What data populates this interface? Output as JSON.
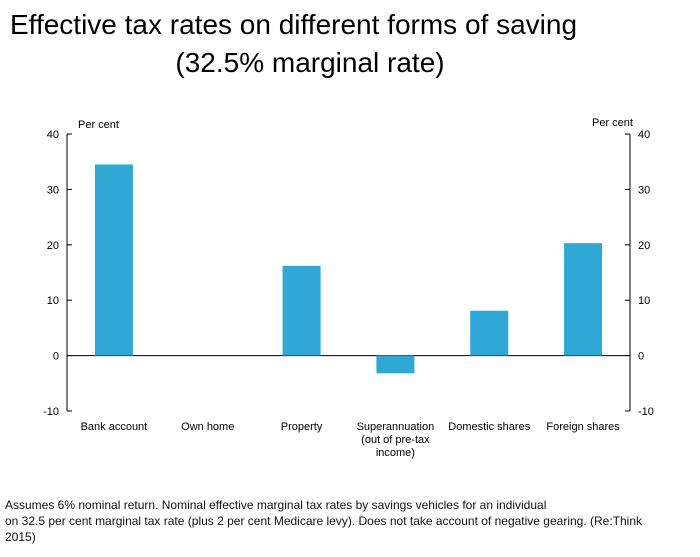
{
  "title": {
    "line1": "Effective tax rates on different forms of saving",
    "line2": "(32.5% marginal rate)"
  },
  "chart_data": {
    "type": "bar",
    "categories": [
      "Bank account",
      "Own home",
      "Property",
      "Superannuation (out of pre-tax income)",
      "Domestic shares",
      "Foreign shares"
    ],
    "category_lines": [
      [
        "Bank account"
      ],
      [
        "Own home"
      ],
      [
        "Property"
      ],
      [
        "Superannuation",
        "(out of pre-tax",
        "income)"
      ],
      [
        "Domestic shares"
      ],
      [
        "Foreign shares"
      ]
    ],
    "values": [
      34.5,
      0,
      16.2,
      -3.2,
      8.1,
      20.3
    ],
    "ylim": [
      -10,
      40
    ],
    "yticks": [
      40,
      30,
      20,
      10,
      0,
      -10
    ],
    "ylabel_left": "Per cent",
    "ylabel_right": "Per cent",
    "bar_color": "#2fa8d5",
    "grid": false
  },
  "footnote": {
    "line1": "Assumes 6% nominal return. Nominal effective marginal tax rates by savings vehicles for an individual",
    "line2": "on 32.5 per cent marginal tax rate (plus 2 per cent Medicare levy). Does not take account of negative gearing. (Re:Think",
    "line3": "2015)"
  }
}
